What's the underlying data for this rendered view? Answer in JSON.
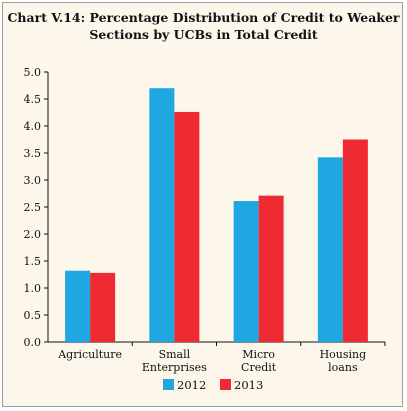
{
  "chart_data": {
    "type": "bar",
    "title_line1": "Chart V.14: Percentage Distribution of Credit to Weaker",
    "title_line2": "Sections by UCBs in Total Credit",
    "categories": [
      [
        "Agriculture"
      ],
      [
        "Small",
        "Enterprises"
      ],
      [
        "Micro",
        "Credit"
      ],
      [
        "Housing",
        "loans"
      ]
    ],
    "series": [
      {
        "name": "2012",
        "color": "#1ea7e1",
        "values": [
          1.32,
          4.7,
          2.61,
          3.42
        ]
      },
      {
        "name": "2013",
        "color": "#ee2a32",
        "values": [
          1.28,
          4.26,
          2.71,
          3.75
        ]
      }
    ],
    "ylim": [
      0,
      5.0
    ],
    "yticks": [
      "0.0",
      "0.5",
      "1.0",
      "1.5",
      "2.0",
      "2.5",
      "3.0",
      "3.5",
      "4.0",
      "4.5",
      "5.0"
    ],
    "grid": false,
    "legend": "bottom"
  }
}
